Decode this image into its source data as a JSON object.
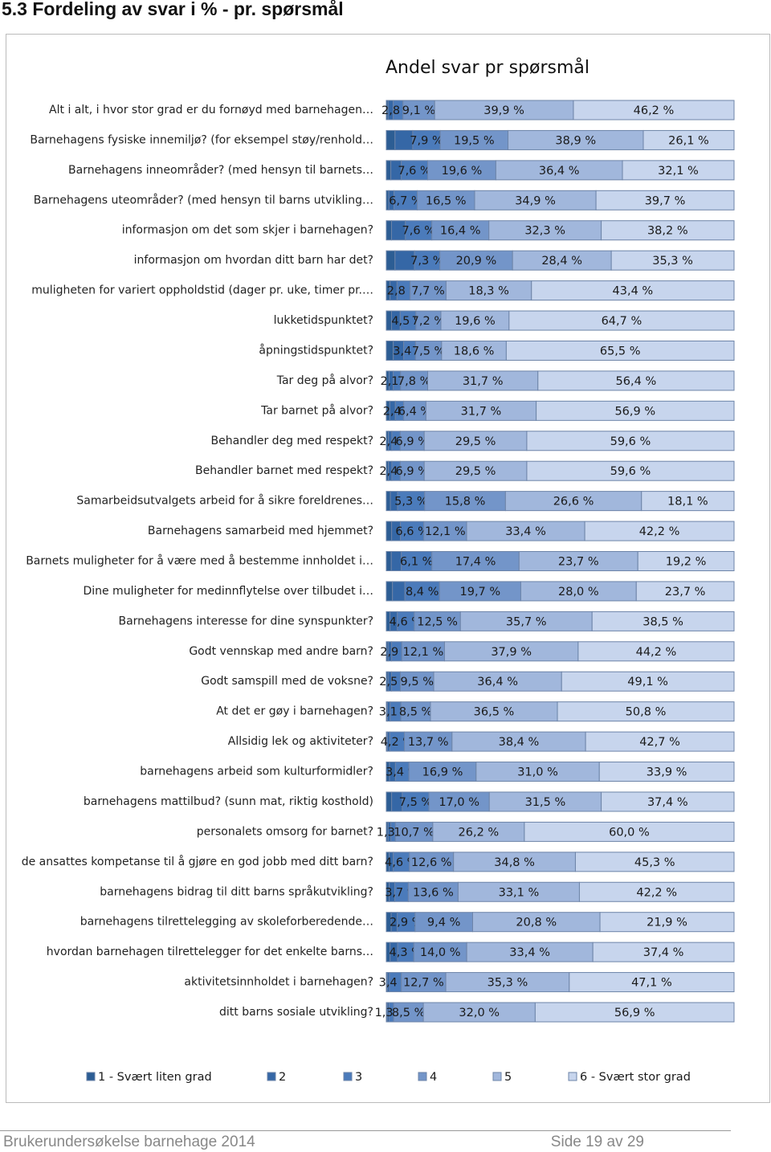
{
  "heading": "5.3 Fordeling av svar i % - pr. spørsmål",
  "chart_data": {
    "type": "bar",
    "orientation": "horizontal",
    "stacking": "percent",
    "title": "Andel svar pr spørsmål",
    "categories": [
      "Alt i alt, i hvor stor grad er du fornøyd med barnehagen…",
      "Barnehagens fysiske innemiljø? (for eksempel  støy/renhold…",
      "Barnehagens inneområder? (med hensyn til barnets…",
      "Barnehagens uteområder? (med hensyn til barns utvikling…",
      "informasjon om det som skjer i barnehagen?",
      "informasjon om hvordan ditt barn har det?",
      "muligheten for variert oppholdstid (dager pr. uke, timer pr.…",
      "lukketidspunktet?",
      "åpningstidspunktet?",
      "Tar deg på alvor?",
      "Tar barnet på alvor?",
      "Behandler deg med respekt?",
      "Behandler barnet med respekt?",
      "Samarbeidsutvalgets arbeid for å sikre foreldrenes…",
      "Barnehagens samarbeid med hjemmet?",
      "Barnets muligheter for å være med å bestemme innholdet i…",
      "Dine muligheter for medinnflytelse over tilbudet i…",
      "Barnehagens interesse for dine synspunkter?",
      "Godt vennskap med andre barn?",
      "Godt samspill med de voksne?",
      "At det er gøy i barnehagen?",
      "Allsidig lek og aktiviteter?",
      "barnehagens arbeid som kulturformidler?",
      "barnehagens mattilbud? (sunn mat, riktig kosthold)",
      "personalets omsorg for barnet?",
      "de ansattes kompetanse til å gjøre en god jobb med ditt barn?",
      "barnehagens bidrag til ditt barns språkutvikling?",
      "barnehagens tilrettelegging av skoleforberedende…",
      "hvordan barnehagen tilrettelegger for det enkelte barns…",
      "aktivitetsinnholdet i barnehagen?",
      "ditt barns sosiale utvikling?"
    ],
    "series": [
      {
        "name": "1 - Svært liten grad",
        "color": "#2c5d94",
        "values": [
          0.5,
          2.5,
          1.3,
          0.7,
          1.5,
          2.5,
          0.8,
          1.5,
          2.0,
          0.8,
          1.0,
          0.6,
          0.6,
          0.8,
          1.5,
          1.0,
          1.5,
          1.0,
          0.5,
          0.5,
          0.3,
          0.3,
          0.8,
          1.5,
          0.5,
          0.8,
          0.8,
          0.8,
          1.0,
          0.3,
          0.3
        ]
      },
      {
        "name": "2",
        "color": "#3567a6",
        "values": [
          1.5,
          5.1,
          3.0,
          1.5,
          4.0,
          5.6,
          1.5,
          2.5,
          3.0,
          1.2,
          1.6,
          1.0,
          1.0,
          1.4,
          2.5,
          2.0,
          3.0,
          2.0,
          1.0,
          1.0,
          0.8,
          0.7,
          1.5,
          3.0,
          0.8,
          1.2,
          1.5,
          1.0,
          2.0,
          0.6,
          0.5
        ]
      },
      {
        "name": "3",
        "color": "#4b7bbb",
        "values": [
          2.8,
          7.9,
          7.6,
          6.7,
          7.6,
          7.3,
          2.8,
          4.5,
          3.4,
          2.1,
          2.4,
          2.4,
          2.4,
          5.3,
          6.6,
          6.1,
          8.4,
          4.6,
          2.9,
          2.5,
          3.1,
          4.2,
          3.4,
          7.5,
          1.3,
          4.6,
          3.7,
          2.9,
          4.3,
          3.4,
          1.3
        ],
        "value_labels": [
          "2,8 %",
          "7,9 %",
          "7,6 %",
          "6,7 %",
          "7,6 %",
          "7,3 %",
          "2,8 %",
          "4,5 %",
          "3,4 %",
          "2,1 %",
          "2,4 %",
          "2,4 %",
          "2,4 %",
          "5,3 %",
          "6,6 %",
          "6,1 %",
          "8,4 %",
          "4,6 %",
          "2,9 %",
          "2,5 %",
          "3,1 %",
          "4,2 %",
          "3,4 %",
          "7,5 %",
          "1,3 %",
          "4,6 %",
          "3,7 %",
          "2,9 %",
          "4,3 %",
          "3,4 %",
          "1,3 %"
        ]
      },
      {
        "name": "4",
        "color": "#7395c9",
        "values": [
          9.1,
          19.5,
          19.6,
          16.5,
          16.4,
          20.9,
          7.7,
          7.2,
          7.5,
          7.8,
          6.4,
          6.9,
          6.9,
          15.8,
          12.1,
          17.4,
          19.7,
          12.5,
          12.1,
          9.5,
          8.5,
          13.7,
          16.9,
          17.0,
          10.7,
          12.6,
          13.6,
          9.4,
          14.0,
          12.7,
          8.5
        ],
        "value_labels": [
          "9,1 %",
          "19,5 %",
          "19,6 %",
          "16,5 %",
          "16,4 %",
          "20,9 %",
          "7,7 %",
          "7,2 %",
          "7,5 %",
          "7,8 %",
          "6,4 %",
          "6,9 %",
          "6,9 %",
          "15,8 %",
          "12,1 %",
          "17,4 %",
          "19,7 %",
          "12,5 %",
          "12,1 %",
          "9,5 %",
          "8,5 %",
          "13,7 %",
          "16,9 %",
          "17,0 %",
          "10,7 %",
          "12,6 %",
          "13,6 %",
          "9,4 %",
          "14,0 %",
          "12,7 %",
          "8,5 %"
        ]
      },
      {
        "name": "5",
        "color": "#a1b7dc",
        "values": [
          39.9,
          38.9,
          36.4,
          34.9,
          32.3,
          28.4,
          18.3,
          19.6,
          18.6,
          31.7,
          31.7,
          29.5,
          29.5,
          26.6,
          33.4,
          23.7,
          28.0,
          35.7,
          37.9,
          36.4,
          36.5,
          38.4,
          31.0,
          31.5,
          26.2,
          34.8,
          33.1,
          20.8,
          33.4,
          35.3,
          32.0
        ],
        "value_labels": [
          "39,9 %",
          "38,9 %",
          "36,4 %",
          "34,9 %",
          "32,3 %",
          "28,4 %",
          "18,3 %",
          "19,6 %",
          "18,6 %",
          "31,7 %",
          "31,7 %",
          "29,5 %",
          "29,5 %",
          "26,6 %",
          "33,4 %",
          "23,7 %",
          "28,0 %",
          "35,7 %",
          "37,9 %",
          "36,4 %",
          "36,5 %",
          "38,4 %",
          "31,0 %",
          "31,5 %",
          "26,2 %",
          "34,8 %",
          "33,1 %",
          "20,8 %",
          "33,4 %",
          "35,3 %",
          "32,0 %"
        ]
      },
      {
        "name": "6 - Svært stor grad",
        "color": "#c7d5ed",
        "values": [
          46.2,
          26.1,
          32.1,
          39.7,
          38.2,
          35.3,
          43.4,
          64.7,
          65.5,
          56.4,
          56.9,
          59.6,
          59.6,
          18.1,
          42.2,
          19.2,
          23.7,
          38.5,
          44.2,
          49.1,
          50.8,
          42.7,
          33.9,
          37.4,
          60.0,
          45.3,
          42.2,
          21.9,
          37.4,
          47.1,
          56.9
        ],
        "value_labels": [
          "46,2 %",
          "26,1 %",
          "32,1 %",
          "39,7 %",
          "38,2 %",
          "35,3 %",
          "43,4 %",
          "64,7 %",
          "65,5 %",
          "56,4 %",
          "56,9 %",
          "59,6 %",
          "59,6 %",
          "18,1 %",
          "42,2 %",
          "19,2 %",
          "23,7 %",
          "38,5 %",
          "44,2 %",
          "49,1 %",
          "50,8 %",
          "42,7 %",
          "33,9 %",
          "37,4 %",
          "60,0 %",
          "45,3 %",
          "42,2 %",
          "21,9 %",
          "37,4 %",
          "47,1 %",
          "56,9 %"
        ]
      }
    ],
    "legend": "bottom"
  },
  "footer": {
    "left": "Brukerundersøkelse barnehage 2014",
    "right": "Side 19 av 29"
  }
}
